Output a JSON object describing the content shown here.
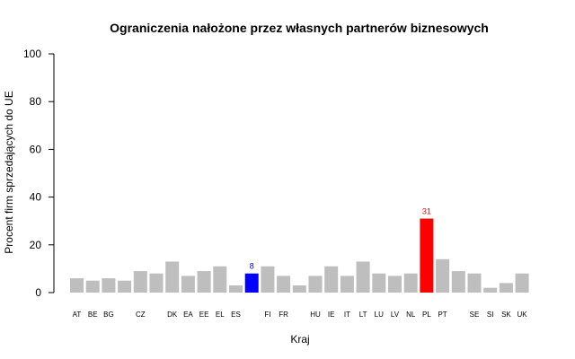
{
  "chart_data": {
    "type": "bar",
    "title": "Ograniczenia nałożone przez własnych partnerów biznesowych",
    "xlabel": "Kraj",
    "ylabel": "Procent firm sprzedających do UE",
    "ylim": [
      0,
      100
    ],
    "yticks": [
      0,
      20,
      40,
      60,
      80,
      100
    ],
    "grid": false,
    "legend": "none",
    "default_color": "#bebebe",
    "bars": [
      {
        "label": "AT",
        "value": 6
      },
      {
        "label": "BE",
        "value": 5
      },
      {
        "label": "BG",
        "value": 6
      },
      {
        "label": "",
        "value": 5
      },
      {
        "label": "CZ",
        "value": 9
      },
      {
        "label": "",
        "value": 8
      },
      {
        "label": "DK",
        "value": 13
      },
      {
        "label": "EA",
        "value": 7
      },
      {
        "label": "EE",
        "value": 9
      },
      {
        "label": "EL",
        "value": 11
      },
      {
        "label": "ES",
        "value": 3
      },
      {
        "label": "",
        "value": 8,
        "color": "#0000ff",
        "data_label": "8",
        "label_color": "#0000ff"
      },
      {
        "label": "FI",
        "value": 11
      },
      {
        "label": "FR",
        "value": 7
      },
      {
        "label": "",
        "value": 3
      },
      {
        "label": "HU",
        "value": 7
      },
      {
        "label": "IE",
        "value": 11
      },
      {
        "label": "IT",
        "value": 7
      },
      {
        "label": "LT",
        "value": 13
      },
      {
        "label": "LU",
        "value": 8
      },
      {
        "label": "LV",
        "value": 7
      },
      {
        "label": "NL",
        "value": 8
      },
      {
        "label": "PL",
        "value": 31,
        "color": "#ff0000",
        "data_label": "31",
        "label_color": "#ff0000"
      },
      {
        "label": "PT",
        "value": 14
      },
      {
        "label": "",
        "value": 9
      },
      {
        "label": "SE",
        "value": 8
      },
      {
        "label": "SI",
        "value": 2
      },
      {
        "label": "SK",
        "value": 4
      },
      {
        "label": "UK",
        "value": 8
      }
    ]
  }
}
